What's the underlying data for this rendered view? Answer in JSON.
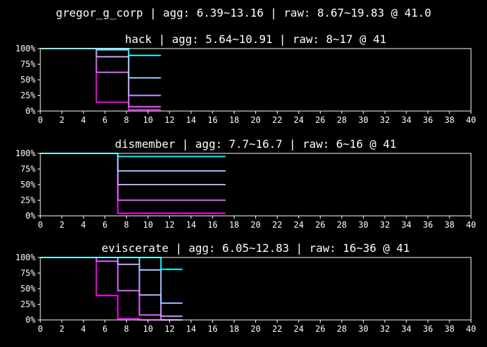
{
  "suptitle": "gregor_g_corp | agg: 6.39~13.16 | raw: 8.67~19.83 @ 41.0",
  "colors": [
    "#ff00ff",
    "#e066ff",
    "#c8a0ff",
    "#a0c8ff",
    "#00ffff"
  ],
  "chart_data": [
    {
      "type": "line",
      "step": true,
      "title": "hack | agg: 5.64~10.91 | raw: 8~17 @ 41",
      "xlim": [
        0,
        40
      ],
      "ylim": [
        0,
        1
      ],
      "xticks": [
        "0",
        "2",
        "4",
        "6",
        "8",
        "10",
        "12",
        "14",
        "16",
        "18",
        "20",
        "22",
        "24",
        "26",
        "28",
        "30",
        "32",
        "34",
        "36",
        "38",
        "40"
      ],
      "yticks": [
        "0%",
        "25%",
        "50%",
        "75%",
        "100%"
      ],
      "series": [
        {
          "points": [
            [
              0,
              1
            ],
            [
              5.2,
              1
            ],
            [
              5.2,
              0.14
            ],
            [
              8.2,
              0.14
            ],
            [
              8.2,
              0.02
            ],
            [
              11.2,
              0.02
            ]
          ]
        },
        {
          "points": [
            [
              0,
              1
            ],
            [
              5.2,
              1
            ],
            [
              5.2,
              0.62
            ],
            [
              8.2,
              0.62
            ],
            [
              8.2,
              0.07
            ],
            [
              11.2,
              0.07
            ]
          ]
        },
        {
          "points": [
            [
              0,
              1
            ],
            [
              5.2,
              1
            ],
            [
              5.2,
              0.87
            ],
            [
              8.2,
              0.87
            ],
            [
              8.2,
              0.25
            ],
            [
              11.2,
              0.25
            ]
          ]
        },
        {
          "points": [
            [
              0,
              1
            ],
            [
              5.2,
              1
            ],
            [
              5.2,
              0.98
            ],
            [
              8.2,
              0.98
            ],
            [
              8.2,
              0.53
            ],
            [
              11.2,
              0.53
            ]
          ]
        },
        {
          "points": [
            [
              0,
              1
            ],
            [
              8.2,
              1
            ],
            [
              8.2,
              0.89
            ],
            [
              11.2,
              0.89
            ]
          ]
        }
      ]
    },
    {
      "type": "line",
      "step": true,
      "title": "dismember | agg: 7.7~16.7 | raw: 6~16 @ 41",
      "xlim": [
        0,
        40
      ],
      "ylim": [
        0,
        1
      ],
      "xticks": [
        "0",
        "2",
        "4",
        "6",
        "8",
        "10",
        "12",
        "14",
        "16",
        "18",
        "20",
        "22",
        "24",
        "26",
        "28",
        "30",
        "32",
        "34",
        "36",
        "38",
        "40"
      ],
      "yticks": [
        "0%",
        "25%",
        "50%",
        "75%",
        "100%"
      ],
      "series": [
        {
          "points": [
            [
              0,
              1
            ],
            [
              7.2,
              1
            ],
            [
              7.2,
              0.04
            ],
            [
              17.2,
              0.04
            ]
          ]
        },
        {
          "points": [
            [
              0,
              1
            ],
            [
              7.2,
              1
            ],
            [
              7.2,
              0.25
            ],
            [
              17.2,
              0.25
            ]
          ]
        },
        {
          "points": [
            [
              0,
              1
            ],
            [
              7.2,
              1
            ],
            [
              7.2,
              0.5
            ],
            [
              17.2,
              0.5
            ]
          ]
        },
        {
          "points": [
            [
              0,
              1
            ],
            [
              7.2,
              1
            ],
            [
              7.2,
              0.72
            ],
            [
              17.2,
              0.72
            ]
          ]
        },
        {
          "points": [
            [
              0,
              1
            ],
            [
              7.2,
              1
            ],
            [
              7.2,
              0.95
            ],
            [
              17.2,
              0.95
            ]
          ]
        }
      ]
    },
    {
      "type": "line",
      "step": true,
      "title": "eviscerate | agg: 6.05~12.83 | raw: 16~36 @ 41",
      "xlim": [
        0,
        40
      ],
      "ylim": [
        0,
        1
      ],
      "xticks": [
        "0",
        "2",
        "4",
        "6",
        "8",
        "10",
        "12",
        "14",
        "16",
        "18",
        "20",
        "22",
        "24",
        "26",
        "28",
        "30",
        "32",
        "34",
        "36",
        "38",
        "40"
      ],
      "yticks": [
        "0%",
        "25%",
        "50%",
        "75%",
        "100%"
      ],
      "series": [
        {
          "points": [
            [
              0,
              1
            ],
            [
              5.2,
              1
            ],
            [
              5.2,
              0.39
            ],
            [
              7.2,
              0.39
            ],
            [
              7.2,
              0.02
            ],
            [
              9.2,
              0.02
            ],
            [
              9.2,
              0.0
            ],
            [
              11.2,
              0.0
            ]
          ]
        },
        {
          "points": [
            [
              0,
              1
            ],
            [
              5.2,
              1
            ],
            [
              5.2,
              0.94
            ],
            [
              7.2,
              0.94
            ],
            [
              7.2,
              0.47
            ],
            [
              9.2,
              0.47
            ],
            [
              9.2,
              0.08
            ],
            [
              11.2,
              0.08
            ],
            [
              11.2,
              0.0
            ],
            [
              13.2,
              0.0
            ]
          ]
        },
        {
          "points": [
            [
              0,
              1
            ],
            [
              7.2,
              1
            ],
            [
              7.2,
              0.89
            ],
            [
              9.2,
              0.89
            ],
            [
              9.2,
              0.4
            ],
            [
              11.2,
              0.4
            ],
            [
              11.2,
              0.06
            ],
            [
              13.2,
              0.06
            ]
          ]
        },
        {
          "points": [
            [
              0,
              1
            ],
            [
              9.2,
              1
            ],
            [
              9.2,
              0.8
            ],
            [
              11.2,
              0.8
            ],
            [
              11.2,
              0.27
            ],
            [
              13.2,
              0.27
            ]
          ]
        },
        {
          "points": [
            [
              0,
              1
            ],
            [
              11.2,
              1
            ],
            [
              11.2,
              0.81
            ],
            [
              13.2,
              0.81
            ]
          ]
        }
      ]
    }
  ]
}
